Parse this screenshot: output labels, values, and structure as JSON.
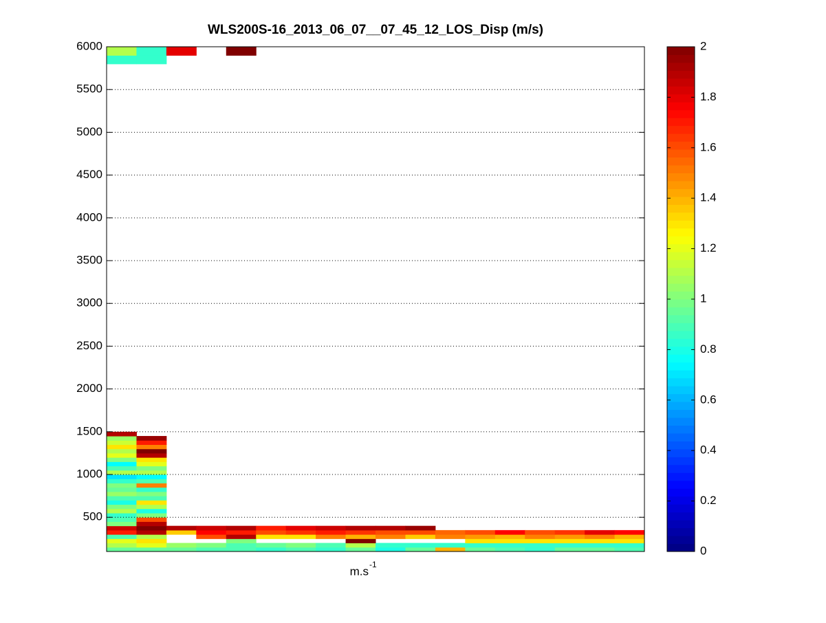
{
  "chart_data": {
    "type": "heatmap",
    "title": "WLS200S-16_2013_06_07__07_45_12_LOS_Disp (m/s)",
    "xlabel": "m.s",
    "xlabel_sup": "-1",
    "categories": [
      null,
      null,
      null,
      null,
      null,
      null,
      null,
      null,
      null,
      null,
      null,
      null,
      null,
      null,
      null,
      null,
      null,
      null
    ],
    "rows": [
      [
        100,
        150
      ],
      [
        150,
        200
      ],
      [
        200,
        250
      ],
      [
        250,
        300
      ],
      [
        300,
        350
      ],
      [
        350,
        400
      ],
      [
        400,
        450
      ],
      [
        450,
        500
      ],
      [
        500,
        550
      ],
      [
        550,
        600
      ],
      [
        600,
        650
      ],
      [
        650,
        700
      ],
      [
        700,
        750
      ],
      [
        750,
        800
      ],
      [
        800,
        850
      ],
      [
        850,
        900
      ],
      [
        900,
        950
      ],
      [
        950,
        1000
      ],
      [
        1000,
        1050
      ],
      [
        1050,
        1100
      ],
      [
        1100,
        1150
      ],
      [
        1150,
        1200
      ],
      [
        1200,
        1250
      ],
      [
        1250,
        1300
      ],
      [
        1300,
        1350
      ],
      [
        1350,
        1400
      ],
      [
        1400,
        1450
      ],
      [
        1450,
        1500
      ],
      [
        5800,
        5900
      ],
      [
        5900,
        6000
      ]
    ],
    "values": [
      [
        0.95,
        0.95,
        0.95,
        0.9,
        0.9,
        0.85,
        0.9,
        0.85,
        0.95,
        0.8,
        0.95,
        1.4,
        0.95,
        0.9,
        0.85,
        0.95,
        0.95,
        0.9
      ],
      [
        1.1,
        1.2,
        1.05,
        1.0,
        0.9,
        0.95,
        1.0,
        0.9,
        1.1,
        0.85,
        0.85,
        0.85,
        0.85,
        0.85,
        0.85,
        0.85,
        0.85,
        0.85
      ],
      [
        1.2,
        1.3,
        null,
        null,
        1.0,
        null,
        null,
        null,
        2.0,
        null,
        null,
        null,
        1.3,
        1.3,
        1.3,
        1.3,
        1.3,
        1.3
      ],
      [
        0.9,
        1.1,
        null,
        1.6,
        1.9,
        1.3,
        1.3,
        1.5,
        1.4,
        1.5,
        1.35,
        1.5,
        1.45,
        1.4,
        1.5,
        1.45,
        1.5,
        1.4
      ],
      [
        1.7,
        1.9,
        1.35,
        1.75,
        1.7,
        1.6,
        1.65,
        1.7,
        1.65,
        1.6,
        1.6,
        1.55,
        1.6,
        1.75,
        1.6,
        1.65,
        1.8,
        1.75
      ],
      [
        1.85,
        2.0,
        1.9,
        1.85,
        1.9,
        1.7,
        1.8,
        1.85,
        1.9,
        1.9,
        1.95,
        null,
        null,
        null,
        null,
        null,
        null,
        null
      ],
      [
        1.0,
        1.9,
        null,
        null,
        null,
        null,
        null,
        null,
        null,
        null,
        null,
        null,
        null,
        null,
        null,
        null,
        null,
        null
      ],
      [
        0.9,
        1.6,
        null,
        null,
        null,
        null,
        null,
        null,
        null,
        null,
        null,
        null,
        null,
        null,
        null,
        null,
        null,
        null
      ],
      [
        0.85,
        1.0,
        null,
        null,
        null,
        null,
        null,
        null,
        null,
        null,
        null,
        null,
        null,
        null,
        null,
        null,
        null,
        null
      ],
      [
        1.1,
        0.8,
        null,
        null,
        null,
        null,
        null,
        null,
        null,
        null,
        null,
        null,
        null,
        null,
        null,
        null,
        null,
        null
      ],
      [
        1.0,
        1.1,
        null,
        null,
        null,
        null,
        null,
        null,
        null,
        null,
        null,
        null,
        null,
        null,
        null,
        null,
        null,
        null
      ],
      [
        0.8,
        1.3,
        null,
        null,
        null,
        null,
        null,
        null,
        null,
        null,
        null,
        null,
        null,
        null,
        null,
        null,
        null,
        null
      ],
      [
        0.9,
        0.9,
        null,
        null,
        null,
        null,
        null,
        null,
        null,
        null,
        null,
        null,
        null,
        null,
        null,
        null,
        null,
        null
      ],
      [
        1.05,
        1.0,
        null,
        null,
        null,
        null,
        null,
        null,
        null,
        null,
        null,
        null,
        null,
        null,
        null,
        null,
        null,
        null
      ],
      [
        0.95,
        0.85,
        null,
        null,
        null,
        null,
        null,
        null,
        null,
        null,
        null,
        null,
        null,
        null,
        null,
        null,
        null,
        null
      ],
      [
        1.0,
        1.5,
        null,
        null,
        null,
        null,
        null,
        null,
        null,
        null,
        null,
        null,
        null,
        null,
        null,
        null,
        null,
        null
      ],
      [
        0.85,
        0.9,
        null,
        null,
        null,
        null,
        null,
        null,
        null,
        null,
        null,
        null,
        null,
        null,
        null,
        null,
        null,
        null
      ],
      [
        0.7,
        0.75,
        null,
        null,
        null,
        null,
        null,
        null,
        null,
        null,
        null,
        null,
        null,
        null,
        null,
        null,
        null,
        null
      ],
      [
        1.1,
        1.1,
        null,
        null,
        null,
        null,
        null,
        null,
        null,
        null,
        null,
        null,
        null,
        null,
        null,
        null,
        null,
        null
      ],
      [
        0.9,
        1.0,
        null,
        null,
        null,
        null,
        null,
        null,
        null,
        null,
        null,
        null,
        null,
        null,
        null,
        null,
        null,
        null
      ],
      [
        0.75,
        1.2,
        null,
        null,
        null,
        null,
        null,
        null,
        null,
        null,
        null,
        null,
        null,
        null,
        null,
        null,
        null,
        null
      ],
      [
        1.0,
        1.3,
        null,
        null,
        null,
        null,
        null,
        null,
        null,
        null,
        null,
        null,
        null,
        null,
        null,
        null,
        null,
        null
      ],
      [
        1.2,
        1.9,
        null,
        null,
        null,
        null,
        null,
        null,
        null,
        null,
        null,
        null,
        null,
        null,
        null,
        null,
        null,
        null
      ],
      [
        1.1,
        2.0,
        null,
        null,
        null,
        null,
        null,
        null,
        null,
        null,
        null,
        null,
        null,
        null,
        null,
        null,
        null,
        null
      ],
      [
        1.3,
        1.5,
        null,
        null,
        null,
        null,
        null,
        null,
        null,
        null,
        null,
        null,
        null,
        null,
        null,
        null,
        null,
        null
      ],
      [
        1.15,
        1.7,
        null,
        null,
        null,
        null,
        null,
        null,
        null,
        null,
        null,
        null,
        null,
        null,
        null,
        null,
        null,
        null
      ],
      [
        1.05,
        1.95,
        null,
        null,
        null,
        null,
        null,
        null,
        null,
        null,
        null,
        null,
        null,
        null,
        null,
        null,
        null,
        null
      ],
      [
        1.9,
        null,
        null,
        null,
        null,
        null,
        null,
        null,
        null,
        null,
        null,
        null,
        null,
        null,
        null,
        null,
        null,
        null
      ],
      [
        0.85,
        0.85,
        null,
        null,
        null,
        null,
        null,
        null,
        null,
        null,
        null,
        null,
        null,
        null,
        null,
        null,
        null,
        null
      ],
      [
        1.1,
        0.85,
        1.8,
        null,
        2.0,
        null,
        null,
        null,
        null,
        null,
        null,
        null,
        null,
        null,
        null,
        null,
        null,
        null
      ]
    ],
    "ylim": [
      100,
      6000
    ],
    "yticks": [
      500,
      1000,
      1500,
      2000,
      2500,
      3000,
      3500,
      4000,
      4500,
      5000,
      5500,
      6000
    ],
    "clim": [
      0,
      2
    ],
    "cticks": [
      0,
      0.2,
      0.4,
      0.6,
      0.8,
      1,
      1.2,
      1.4,
      1.6,
      1.8,
      2
    ],
    "colormap": "jet",
    "grid": true
  }
}
